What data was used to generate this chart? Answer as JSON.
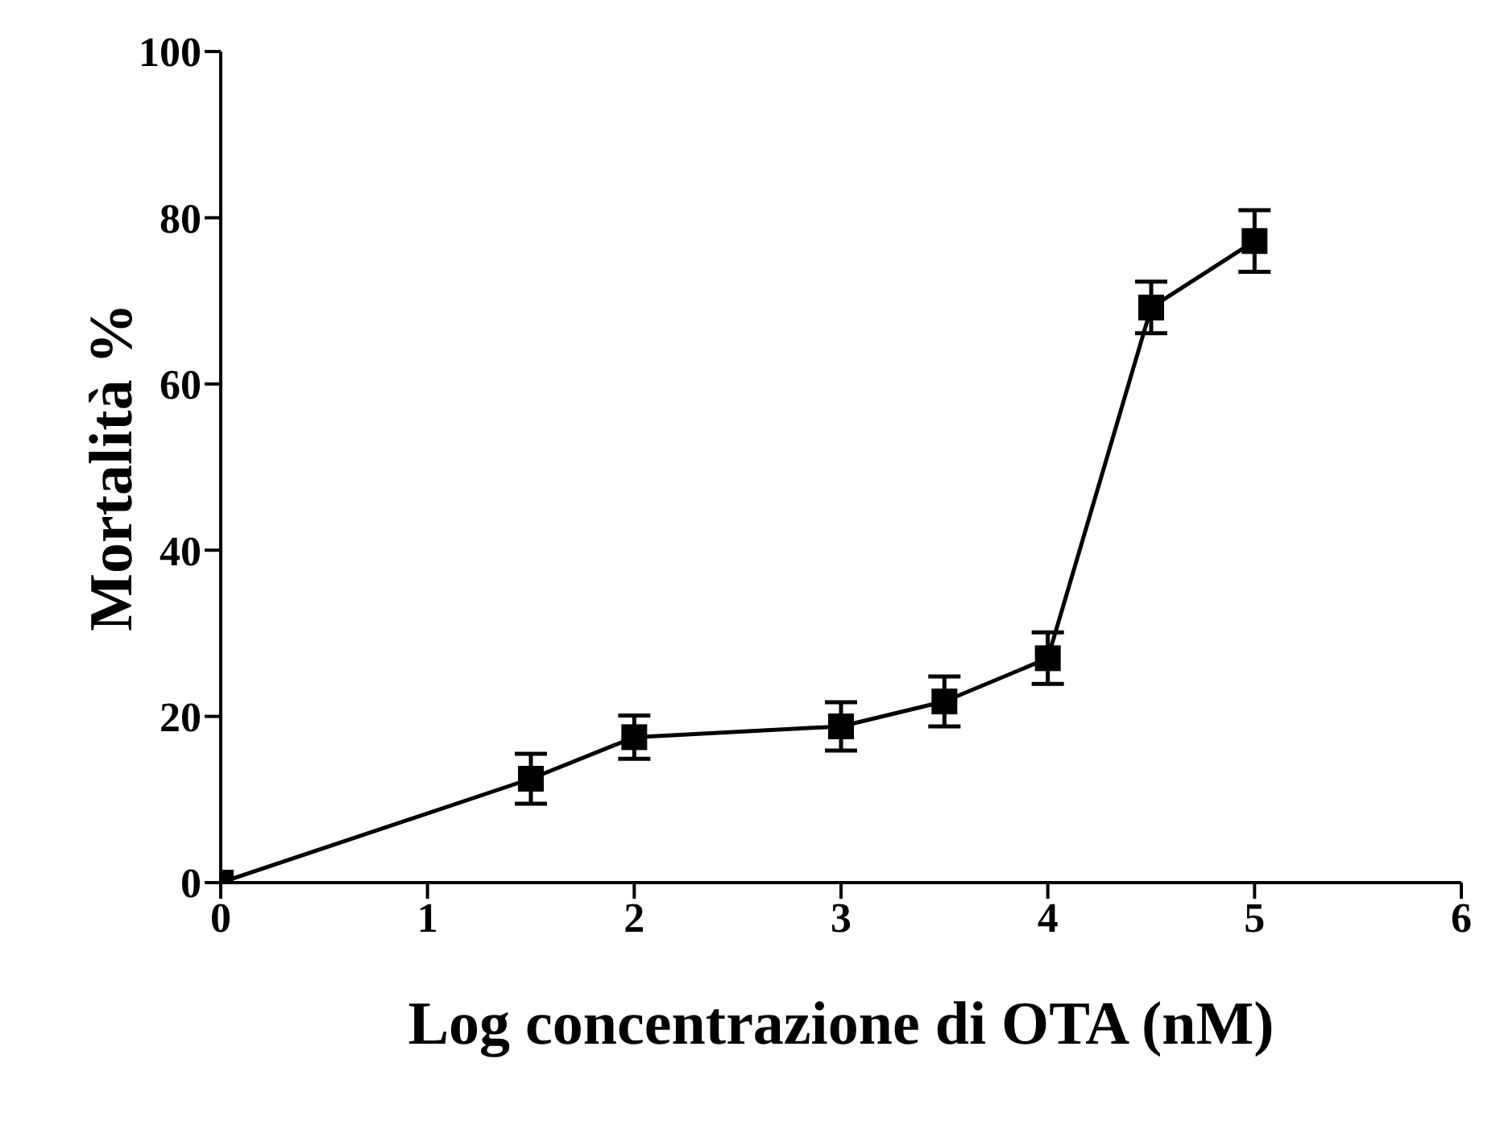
{
  "chart_data": {
    "type": "line",
    "xlabel": "Log concentrazione di OTA (nM)",
    "ylabel": "Mortalità %",
    "x": [
      0,
      1.5,
      2,
      3,
      3.5,
      4,
      4.5,
      5
    ],
    "series": [
      {
        "color": "#000000",
        "values": [
          0,
          12.5,
          17.5,
          18.8,
          21.8,
          27.0,
          69.2,
          77.2
        ],
        "errors": [
          null,
          3,
          2.6,
          2.9,
          3,
          3.1,
          3.1,
          3.7
        ]
      }
    ],
    "xlim": [
      0,
      6
    ],
    "xticks": [
      0,
      1,
      2,
      3,
      4,
      5,
      6
    ],
    "ylim": [
      0,
      100
    ],
    "yticks": [
      0,
      20,
      40,
      60,
      80,
      100
    ],
    "marker": "square",
    "line_style": "solid",
    "grid": false,
    "legend": false
  }
}
